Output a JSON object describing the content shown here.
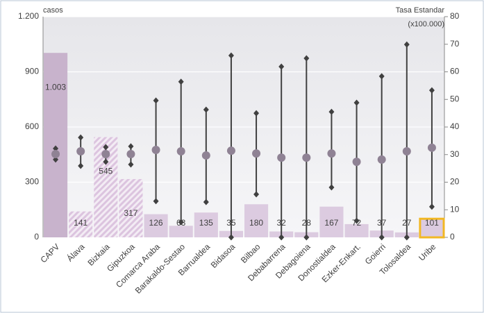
{
  "chart_data": {
    "type": "bar",
    "left_axis_label": "casos",
    "right_axis_label": "Tasa Estandar",
    "right_axis_sublabel": "(x100.000)",
    "categories": [
      "CAPV",
      "Álava",
      "Bizkaia",
      "Gipuzkoa",
      "Comarca Araba",
      "Barakaldo-Sestao",
      "Barrualdea",
      "Bidasoa",
      "Bilbao",
      "Debabarrena",
      "Debagoiena",
      "Donostialdea",
      "Ezker-Enkart.",
      "Goierri",
      "Tolosaldea",
      "Uribe"
    ],
    "values": [
      1003,
      141,
      545,
      317,
      126,
      63,
      135,
      35,
      180,
      32,
      28,
      167,
      72,
      37,
      27,
      101
    ],
    "value_labels": [
      "1.003",
      "141",
      "545",
      "317",
      "126",
      "63",
      "135",
      "35",
      "180",
      "32",
      "28",
      "167",
      "72",
      "37",
      "27",
      "101"
    ],
    "bar_styles": [
      "solid",
      "hatched",
      "hatched",
      "hatched",
      "light",
      "light",
      "light",
      "light",
      "light",
      "light",
      "light",
      "light",
      "light",
      "light",
      "light",
      "highlight"
    ],
    "colors": {
      "solid": "#c8b3cc",
      "hatched": "#e3d3e6",
      "light": "#dccbe0",
      "highlight": "#f2b824",
      "rate": "#8f8294",
      "whisker": "#404040"
    },
    "rate": {
      "values": [
        30.2,
        31.2,
        30.2,
        30.2,
        31.7,
        31.2,
        29.7,
        31.4,
        30.4,
        28.9,
        28.9,
        30.4,
        27.4,
        28.2,
        31.2,
        32.5
      ],
      "low": [
        28.2,
        25.9,
        27.4,
        26.4,
        13.1,
        5.5,
        12.8,
        0,
        15.6,
        0,
        0,
        18.1,
        6,
        0,
        0,
        11.1
      ],
      "high": [
        32.2,
        36.2,
        32.7,
        33,
        49.6,
        56.4,
        46.3,
        65.9,
        45,
        61.9,
        64.9,
        45.5,
        48.8,
        58.4,
        69.9,
        53.3
      ]
    },
    "ylim": [
      0,
      1200
    ],
    "yticks": [
      0,
      300,
      600,
      900,
      {
        "value": 1200,
        "label": "1.200"
      }
    ],
    "y2lim": [
      0,
      80
    ],
    "y2ticks": [
      0,
      10,
      20,
      30,
      40,
      50,
      60,
      70,
      80
    ],
    "grid": true
  }
}
